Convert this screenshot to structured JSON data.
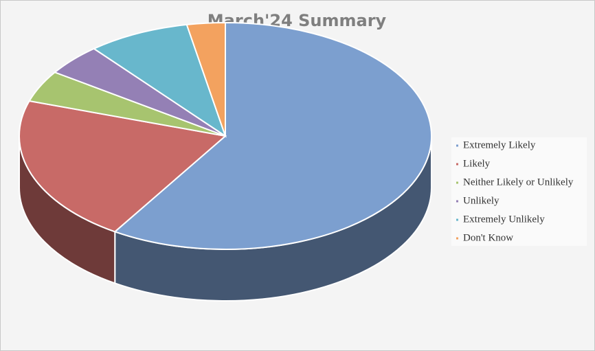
{
  "chart_data": {
    "type": "pie3d",
    "title": "March'24 Summary",
    "categories": [
      "Extremely Likely",
      "Likely",
      "Neither Likely or Unlikely",
      "Unlikely",
      "Extremely Unlikely",
      "Don't Know"
    ],
    "values": [
      59,
      21,
      4.5,
      4.5,
      8,
      3
    ],
    "colors": [
      "#7c9fcf",
      "#c86a67",
      "#a7c46f",
      "#9480b5",
      "#68b7cc",
      "#f3a25f"
    ],
    "legend": "right"
  }
}
